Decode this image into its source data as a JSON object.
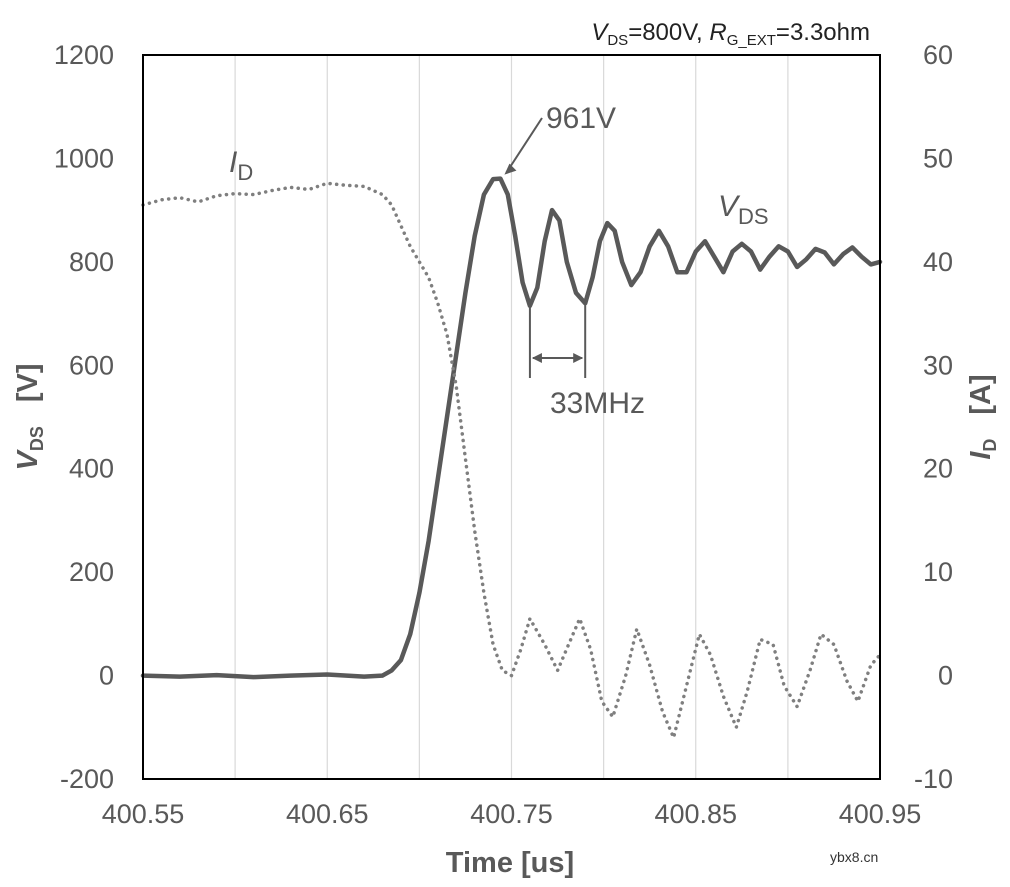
{
  "chart_data": {
    "type": "line",
    "condition": {
      "v_symbol": "V",
      "v_sub": "DS",
      "v_value": "=800V, ",
      "r_symbol": "R",
      "r_sub": "G_EXT",
      "r_value": "=3.3ohm"
    },
    "xlabel": "Time [us]",
    "ylabel_left": {
      "symbol": "V",
      "sub": "DS",
      "unit": "[V]"
    },
    "ylabel_right": {
      "symbol": "I",
      "sub": "D",
      "unit": "[A]"
    },
    "xlim": [
      400.55,
      400.95
    ],
    "ylim_left": [
      -200,
      1200
    ],
    "ylim_right": [
      -10,
      60
    ],
    "x_ticks": [
      "400.55",
      "400.65",
      "400.75",
      "400.85",
      "400.95"
    ],
    "y_left_ticks": [
      "-200",
      "0",
      "200",
      "400",
      "600",
      "800",
      "1000",
      "1200"
    ],
    "y_right_ticks": [
      "-10",
      "0",
      "10",
      "20",
      "30",
      "40",
      "50",
      "60"
    ],
    "grid": "vertical",
    "annotations": {
      "peak": {
        "text": "961V",
        "x": 400.744,
        "y": 961
      },
      "freq": {
        "text": "33MHz",
        "x1": 400.76,
        "x2": 400.79
      },
      "id_label": {
        "symbol": "I",
        "sub": "D"
      },
      "vds_label": {
        "symbol": "V",
        "sub": "DS"
      }
    },
    "series": [
      {
        "name": "VDS",
        "axis": "left",
        "style": "solid",
        "color": "#595959",
        "x": [
          400.55,
          400.57,
          400.59,
          400.61,
          400.63,
          400.65,
          400.67,
          400.68,
          400.685,
          400.69,
          400.695,
          400.7,
          400.705,
          400.71,
          400.715,
          400.72,
          400.725,
          400.73,
          400.735,
          400.74,
          400.744,
          400.748,
          400.752,
          400.756,
          400.76,
          400.764,
          400.768,
          400.772,
          400.776,
          400.78,
          400.785,
          400.79,
          400.794,
          400.798,
          400.802,
          400.806,
          400.81,
          400.815,
          400.82,
          400.825,
          400.83,
          400.835,
          400.84,
          400.845,
          400.85,
          400.855,
          400.86,
          400.865,
          400.87,
          400.875,
          400.88,
          400.885,
          400.89,
          400.895,
          400.9,
          400.905,
          400.91,
          400.915,
          400.92,
          400.925,
          400.93,
          400.935,
          400.94,
          400.945,
          400.95
        ],
        "values": [
          0,
          -2,
          1,
          -3,
          0,
          2,
          -2,
          0,
          10,
          30,
          80,
          160,
          260,
          380,
          500,
          620,
          740,
          850,
          930,
          960,
          961,
          930,
          850,
          760,
          715,
          750,
          840,
          900,
          880,
          800,
          740,
          720,
          770,
          840,
          875,
          860,
          800,
          755,
          780,
          830,
          860,
          830,
          780,
          780,
          820,
          840,
          810,
          780,
          820,
          835,
          820,
          785,
          810,
          830,
          820,
          790,
          805,
          825,
          818,
          795,
          815,
          828,
          810,
          795,
          800
        ]
      },
      {
        "name": "ID",
        "axis": "right",
        "style": "dotted",
        "color": "#7f7f7f",
        "x": [
          400.55,
          400.56,
          400.57,
          400.58,
          400.59,
          400.6,
          400.61,
          400.62,
          400.63,
          400.64,
          400.65,
          400.66,
          400.67,
          400.68,
          400.685,
          400.69,
          400.695,
          400.7,
          400.705,
          400.71,
          400.715,
          400.72,
          400.725,
          400.73,
          400.735,
          400.74,
          400.745,
          400.75,
          400.755,
          400.76,
          400.768,
          400.775,
          400.781,
          400.787,
          400.793,
          400.799,
          400.805,
          400.812,
          400.818,
          400.825,
          400.832,
          400.838,
          400.845,
          400.852,
          400.858,
          400.865,
          400.872,
          400.878,
          400.885,
          400.892,
          400.898,
          400.905,
          400.912,
          400.918,
          400.925,
          400.932,
          400.938,
          400.945,
          400.95
        ],
        "values": [
          45.5,
          46.0,
          46.2,
          45.8,
          46.4,
          46.6,
          46.5,
          46.9,
          47.2,
          47.0,
          47.6,
          47.4,
          47.3,
          46.5,
          45.5,
          43.5,
          41.5,
          40.0,
          38.5,
          36.0,
          33.0,
          28.0,
          21.0,
          14.0,
          8.0,
          3.0,
          0.5,
          0.0,
          2.5,
          5.5,
          3.0,
          0.5,
          3.0,
          5.5,
          2.5,
          -2.5,
          -4.0,
          0.0,
          4.5,
          1.0,
          -3.5,
          -6.0,
          -1.0,
          4.0,
          2.0,
          -2.0,
          -5.0,
          -1.5,
          3.5,
          3.0,
          -1.0,
          -3.0,
          0.5,
          4.0,
          3.0,
          -0.5,
          -2.5,
          1.0,
          2.0
        ]
      }
    ]
  },
  "watermark": "ybx8.cn"
}
